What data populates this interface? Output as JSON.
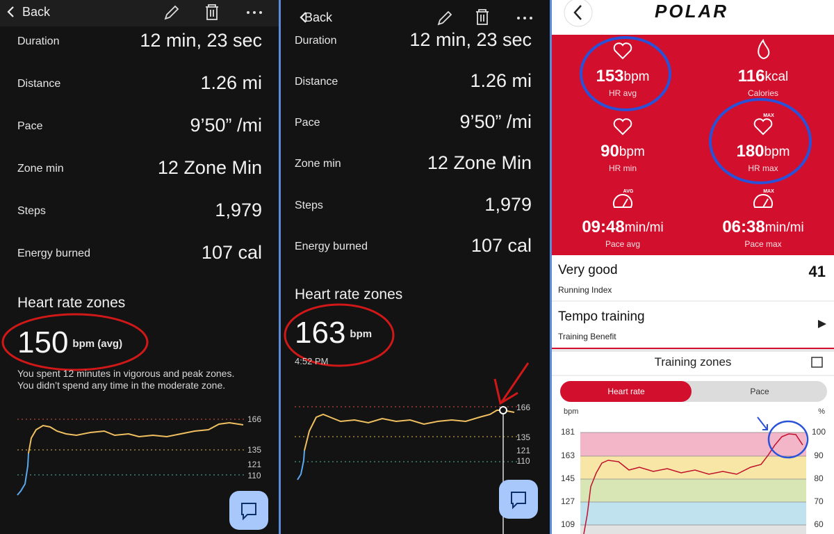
{
  "panels": [
    {
      "nav": {
        "back": "Back"
      },
      "stats": [
        {
          "label": "Duration",
          "value": "12 min, 23 sec"
        },
        {
          "label": "Distance",
          "value": "1.26 mi"
        },
        {
          "label": "Pace",
          "value": "9’50” /mi"
        },
        {
          "label": "Zone min",
          "value": "12 Zone Min"
        },
        {
          "label": "Steps",
          "value": "1,979"
        },
        {
          "label": "Energy burned",
          "value": "107 cal"
        }
      ],
      "heart_rate": {
        "title": "Heart rate zones",
        "value": "150",
        "unit": "bpm (avg)",
        "note_lines": [
          "You spent 12 minutes in vigorous and peak zones.",
          "You didn’t spend any time in the moderate zone."
        ],
        "chart_labels": [
          "166",
          "135",
          "121",
          "110"
        ]
      }
    },
    {
      "nav": {
        "back": "Back"
      },
      "stats": [
        {
          "label": "Duration",
          "value": "12 min, 23 sec"
        },
        {
          "label": "Distance",
          "value": "1.26 mi"
        },
        {
          "label": "Pace",
          "value": "9’50” /mi"
        },
        {
          "label": "Zone min",
          "value": "12 Zone Min"
        },
        {
          "label": "Steps",
          "value": "1,979"
        },
        {
          "label": "Energy burned",
          "value": "107 cal"
        }
      ],
      "heart_rate": {
        "title": "Heart rate zones",
        "value": "163",
        "unit": "bpm",
        "time": "4:52 PM",
        "chart_labels": [
          "166",
          "135",
          "121",
          "110"
        ]
      }
    }
  ],
  "polar": {
    "logo": "POLAR",
    "metrics": [
      {
        "value": "153",
        "unit": "bpm",
        "label": "HR avg"
      },
      {
        "value": "116",
        "unit": "kcal",
        "label": "Calories"
      },
      {
        "value": "90",
        "unit": "bpm",
        "label": "HR min"
      },
      {
        "value": "180",
        "unit": "bpm",
        "label": "HR max",
        "badge": "MAX"
      },
      {
        "value": "09:48",
        "unit": "min/mi",
        "label": "Pace avg",
        "badge": "AVG"
      },
      {
        "value": "06:38",
        "unit": "min/mi",
        "label": "Pace max",
        "badge": "MAX"
      }
    ],
    "rows": [
      {
        "title": "Very good",
        "subtitle": "Running Index",
        "value": "41"
      },
      {
        "title": "Tempo training",
        "subtitle": "Training Benefit"
      }
    ],
    "zones": {
      "title": "Training zones",
      "tabs": [
        "Heart rate",
        "Pace"
      ],
      "left_axis": "bpm",
      "right_axis": "%",
      "left_ticks": [
        "181",
        "163",
        "145",
        "127",
        "109"
      ],
      "right_ticks": [
        "100",
        "90",
        "80",
        "70",
        "60"
      ]
    }
  }
}
